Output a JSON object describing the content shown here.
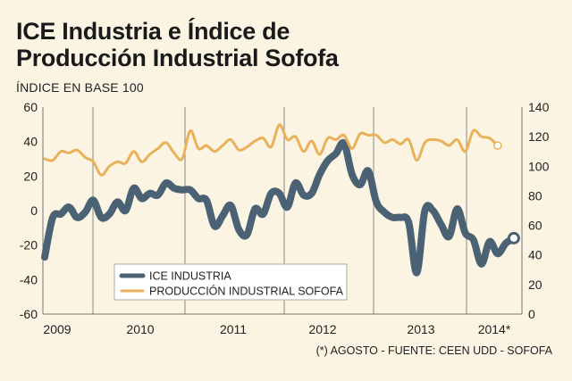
{
  "title_line1": "ICE Industria e Índice de",
  "title_line2": "Producción Industrial Sofofa",
  "subtitle": "ÍNDICE EN BASE 100",
  "source_note": "(*) AGOSTO - FUENTE: CEEN UDD - SOFOFA",
  "chart_data": {
    "type": "line",
    "x_tick_labels": [
      "2009",
      "2010",
      "2011",
      "2012",
      "2013",
      "2014*"
    ],
    "y_left": {
      "range": [
        -60,
        60
      ],
      "ticks": [
        -60,
        -40,
        -20,
        0,
        20,
        40,
        60
      ]
    },
    "y_right": {
      "range": [
        0,
        140
      ],
      "ticks": [
        0,
        20,
        40,
        60,
        80,
        100,
        120,
        140
      ]
    },
    "legend_position": "bottom-left",
    "grid": "vertical-at-year-starts",
    "series": [
      {
        "name": "ICE INDUSTRIA",
        "axis": "left",
        "color": "#4b6275",
        "end_marker": true,
        "values": [
          -27,
          -4,
          -2,
          2,
          -4,
          -1,
          6,
          -4,
          -2,
          5,
          0,
          13,
          7,
          10,
          9,
          16,
          13,
          12,
          12,
          7,
          6,
          -9,
          -3,
          3,
          -11,
          -14,
          1,
          -2,
          10,
          10,
          2,
          16,
          9,
          10,
          21,
          29,
          33,
          39,
          21,
          15,
          23,
          5,
          -1,
          -4,
          -4,
          -7,
          -36,
          0,
          0,
          -8,
          -15,
          1,
          -13,
          -17,
          -31,
          -18,
          -25,
          -19,
          -16
        ]
      },
      {
        "name": "PRODUCCIÓN INDUSTRIAL SOFOFA",
        "axis": "right",
        "color": "#e8b15a",
        "end_marker": true,
        "values": [
          105,
          104,
          110,
          109,
          111,
          106,
          103,
          94,
          100,
          103,
          102,
          110,
          103,
          108,
          112,
          116,
          109,
          105,
          124,
          112,
          114,
          110,
          114,
          118,
          111,
          113,
          117,
          119,
          113,
          128,
          118,
          120,
          110,
          117,
          108,
          119,
          118,
          121,
          112,
          122,
          121,
          121,
          116,
          118,
          115,
          118,
          104,
          116,
          118,
          117,
          114,
          118,
          110,
          124,
          120,
          119,
          114
        ]
      }
    ]
  }
}
